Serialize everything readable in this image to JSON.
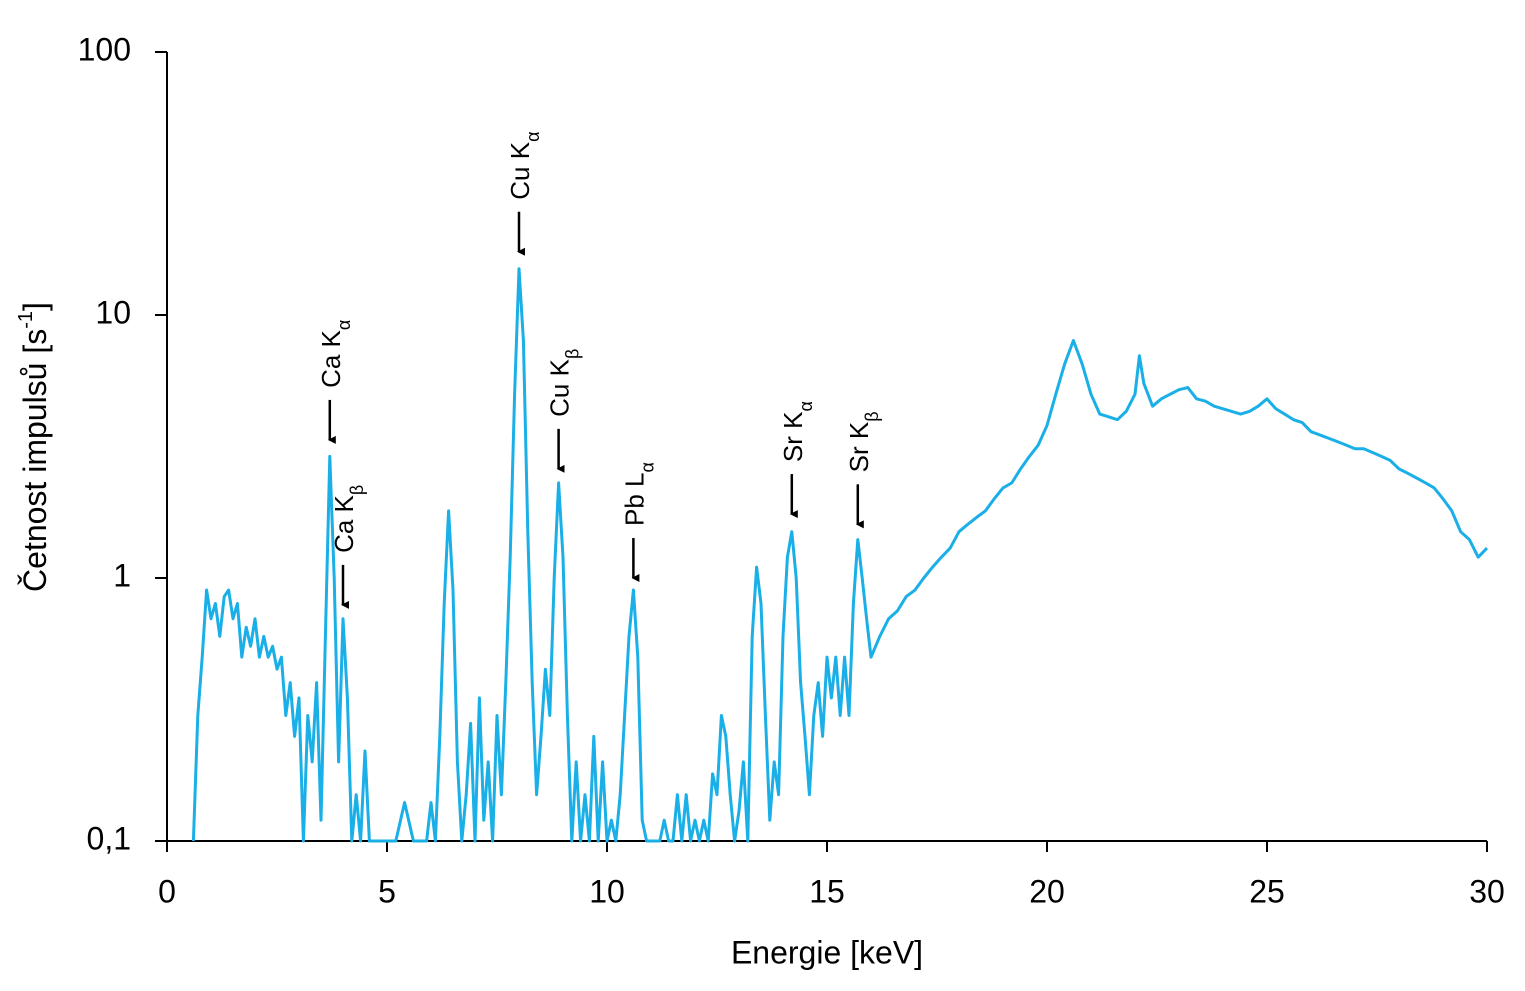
{
  "chart_data": {
    "type": "line",
    "x_label": "Energie [keV]",
    "y_label": {
      "text": "Četnost impulsů [s",
      "sup": "-1",
      "end": "]"
    },
    "color": "#1aafe6",
    "ylog": true,
    "xlim": [
      0,
      30
    ],
    "ylim": [
      0.1,
      100
    ],
    "xticks": [
      0,
      5,
      10,
      15,
      20,
      25,
      30
    ],
    "yticks": [
      {
        "value": 0.1,
        "label": "0,1"
      },
      1,
      10,
      100
    ],
    "x": [
      0.6,
      0.7,
      0.8,
      0.9,
      1.0,
      1.1,
      1.2,
      1.3,
      1.4,
      1.5,
      1.6,
      1.7,
      1.8,
      1.9,
      2.0,
      2.1,
      2.2,
      2.3,
      2.4,
      2.5,
      2.6,
      2.7,
      2.8,
      2.9,
      3.0,
      3.1,
      3.2,
      3.3,
      3.4,
      3.5,
      3.6,
      3.7,
      3.8,
      3.9,
      4.0,
      4.1,
      4.2,
      4.3,
      4.4,
      4.5,
      4.6,
      4.8,
      5.0,
      5.2,
      5.4,
      5.6,
      5.8,
      5.9,
      6.0,
      6.1,
      6.2,
      6.3,
      6.4,
      6.5,
      6.6,
      6.7,
      6.8,
      6.9,
      7.0,
      7.1,
      7.2,
      7.3,
      7.4,
      7.5,
      7.6,
      7.7,
      7.8,
      7.9,
      8.0,
      8.1,
      8.2,
      8.3,
      8.4,
      8.5,
      8.6,
      8.7,
      8.8,
      8.9,
      9.0,
      9.1,
      9.2,
      9.3,
      9.4,
      9.5,
      9.6,
      9.7,
      9.8,
      9.9,
      10.0,
      10.1,
      10.2,
      10.3,
      10.4,
      10.5,
      10.6,
      10.7,
      10.8,
      10.9,
      11.0,
      11.1,
      11.2,
      11.3,
      11.4,
      11.5,
      11.6,
      11.7,
      11.8,
      11.9,
      12.0,
      12.1,
      12.2,
      12.3,
      12.4,
      12.5,
      12.6,
      12.7,
      12.8,
      12.9,
      13.0,
      13.1,
      13.2,
      13.3,
      13.4,
      13.5,
      13.6,
      13.7,
      13.8,
      13.9,
      14.0,
      14.1,
      14.2,
      14.3,
      14.4,
      14.5,
      14.6,
      14.7,
      14.8,
      14.9,
      15.0,
      15.1,
      15.2,
      15.3,
      15.4,
      15.5,
      15.6,
      15.7,
      15.8,
      15.9,
      16.0,
      16.2,
      16.4,
      16.6,
      16.8,
      17.0,
      17.2,
      17.4,
      17.6,
      17.8,
      18.0,
      18.2,
      18.4,
      18.6,
      18.8,
      19.0,
      19.2,
      19.4,
      19.6,
      19.8,
      20.0,
      20.2,
      20.4,
      20.6,
      20.8,
      21.0,
      21.2,
      21.4,
      21.6,
      21.8,
      22.0,
      22.1,
      22.2,
      22.4,
      22.6,
      22.8,
      23.0,
      23.2,
      23.4,
      23.6,
      23.8,
      24.0,
      24.2,
      24.4,
      24.6,
      24.8,
      25.0,
      25.2,
      25.4,
      25.6,
      25.8,
      26.0,
      26.2,
      26.4,
      26.6,
      26.8,
      27.0,
      27.2,
      27.4,
      27.6,
      27.8,
      28.0,
      28.2,
      28.4,
      28.6,
      28.8,
      29.0,
      29.2,
      29.4,
      29.6,
      29.8,
      30.0
    ],
    "values": [
      0.1,
      0.3,
      0.5,
      0.9,
      0.7,
      0.8,
      0.6,
      0.85,
      0.9,
      0.7,
      0.8,
      0.5,
      0.65,
      0.55,
      0.7,
      0.5,
      0.6,
      0.5,
      0.55,
      0.45,
      0.5,
      0.3,
      0.4,
      0.25,
      0.35,
      0.1,
      0.3,
      0.2,
      0.4,
      0.12,
      0.6,
      2.9,
      1.0,
      0.2,
      0.7,
      0.35,
      0.1,
      0.15,
      0.1,
      0.22,
      0.1,
      0.1,
      0.1,
      0.1,
      0.14,
      0.1,
      0.1,
      0.1,
      0.14,
      0.1,
      0.25,
      0.8,
      1.8,
      0.9,
      0.2,
      0.1,
      0.15,
      0.28,
      0.1,
      0.35,
      0.12,
      0.2,
      0.1,
      0.3,
      0.15,
      0.4,
      1.2,
      5,
      15,
      8,
      1.5,
      0.4,
      0.15,
      0.25,
      0.45,
      0.3,
      1.0,
      2.3,
      1.2,
      0.3,
      0.1,
      0.2,
      0.1,
      0.15,
      0.1,
      0.25,
      0.1,
      0.2,
      0.1,
      0.12,
      0.1,
      0.15,
      0.3,
      0.6,
      0.9,
      0.5,
      0.12,
      0.1,
      0.1,
      0.1,
      0.1,
      0.12,
      0.1,
      0.1,
      0.15,
      0.1,
      0.15,
      0.1,
      0.12,
      0.1,
      0.12,
      0.1,
      0.18,
      0.15,
      0.3,
      0.25,
      0.15,
      0.1,
      0.13,
      0.2,
      0.1,
      0.6,
      1.1,
      0.8,
      0.3,
      0.12,
      0.2,
      0.15,
      0.6,
      1.2,
      1.5,
      1.0,
      0.4,
      0.25,
      0.15,
      0.3,
      0.4,
      0.25,
      0.5,
      0.35,
      0.5,
      0.3,
      0.5,
      0.3,
      0.8,
      1.4,
      1.0,
      0.7,
      0.5,
      0.6,
      0.7,
      0.75,
      0.85,
      0.9,
      1.0,
      1.1,
      1.2,
      1.3,
      1.5,
      1.6,
      1.7,
      1.8,
      2.0,
      2.2,
      2.3,
      2.6,
      2.9,
      3.2,
      3.8,
      5.0,
      6.5,
      8,
      6.5,
      5,
      4.2,
      4.1,
      4.0,
      4.3,
      5,
      7,
      5.5,
      4.5,
      4.8,
      5.0,
      5.2,
      5.3,
      4.8,
      4.7,
      4.5,
      4.4,
      4.3,
      4.2,
      4.3,
      4.5,
      4.8,
      4.4,
      4.2,
      4.0,
      3.9,
      3.6,
      3.5,
      3.4,
      3.3,
      3.2,
      3.1,
      3.1,
      3.0,
      2.9,
      2.8,
      2.6,
      2.5,
      2.4,
      2.3,
      2.2,
      2.0,
      1.8,
      1.5,
      1.4,
      1.2,
      1.3
    ],
    "annotations": [
      {
        "text": "Ca K",
        "sub": "α",
        "x": 3.7,
        "y": 3.35
      },
      {
        "text": "Ca K",
        "sub": "β",
        "x": 4.0,
        "y": 0.79
      },
      {
        "text": "Cu K",
        "sub": "α",
        "x": 8.0,
        "y": 17.4
      },
      {
        "text": "Cu K",
        "sub": "β",
        "x": 8.9,
        "y": 2.6
      },
      {
        "text": "Pb L",
        "sub": "α",
        "x": 10.6,
        "y": 1.0
      },
      {
        "text": "Sr K",
        "sub": "α",
        "x": 14.2,
        "y": 1.75
      },
      {
        "text": "Sr K",
        "sub": "β",
        "x": 15.7,
        "y": 1.6
      }
    ]
  }
}
